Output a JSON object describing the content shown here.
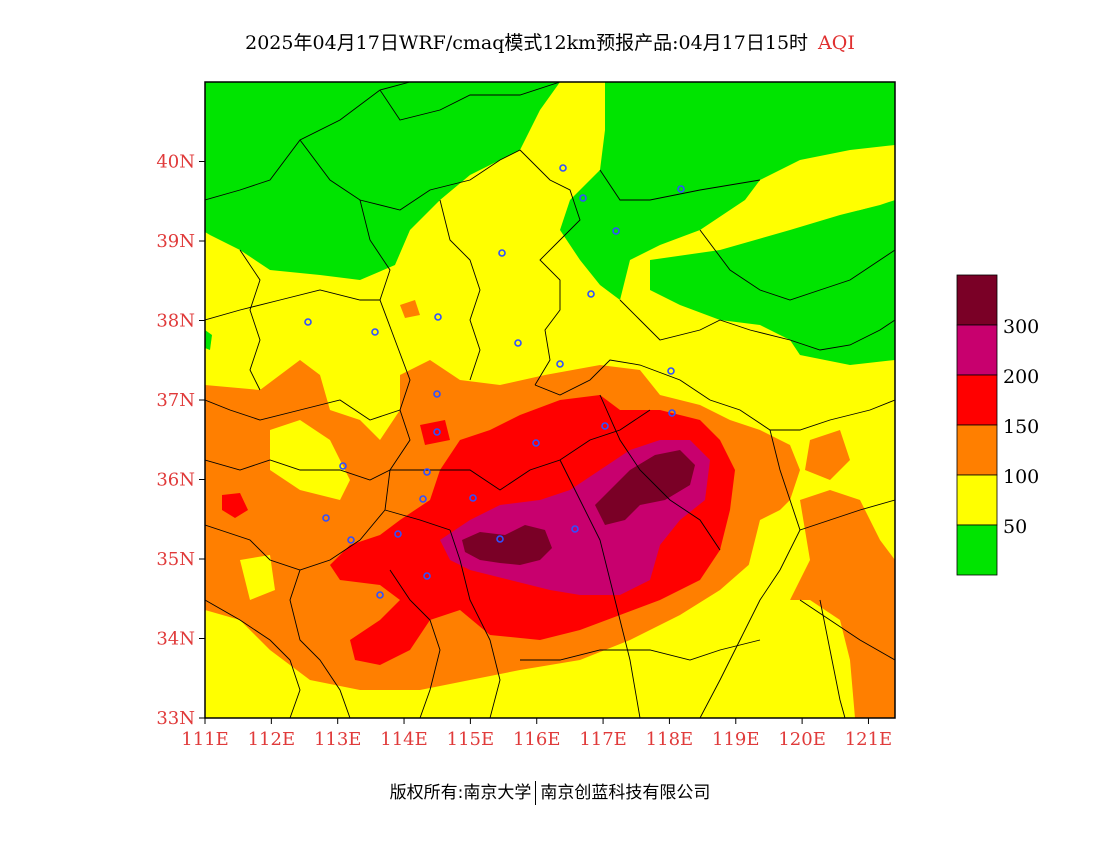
{
  "title": {
    "main": "2025年04月17日WRF/cmaq模式12km预报产品:04月17日15时",
    "variable": "AQI"
  },
  "axes": {
    "lat_ticks": [
      "40N",
      "39N",
      "38N",
      "37N",
      "36N",
      "35N",
      "34N",
      "33N"
    ],
    "lon_ticks": [
      "111E",
      "112E",
      "113E",
      "114E",
      "115E",
      "116E",
      "117E",
      "118E",
      "119E",
      "120E",
      "121E"
    ],
    "lat_range": [
      33,
      41
    ],
    "lon_range": [
      111,
      121.4
    ]
  },
  "legend": {
    "labels": [
      "300",
      "200",
      "150",
      "100",
      "50"
    ],
    "colors": {
      "c300": "#7a0026",
      "c200": "#c8006e",
      "c150": "#ff0000",
      "c100": "#ff7f00",
      "c50": "#ffff00",
      "c0": "#00e400"
    }
  },
  "footer": {
    "left": "版权所有:南京大学",
    "right": "南京创蓝科技有限公司"
  }
}
